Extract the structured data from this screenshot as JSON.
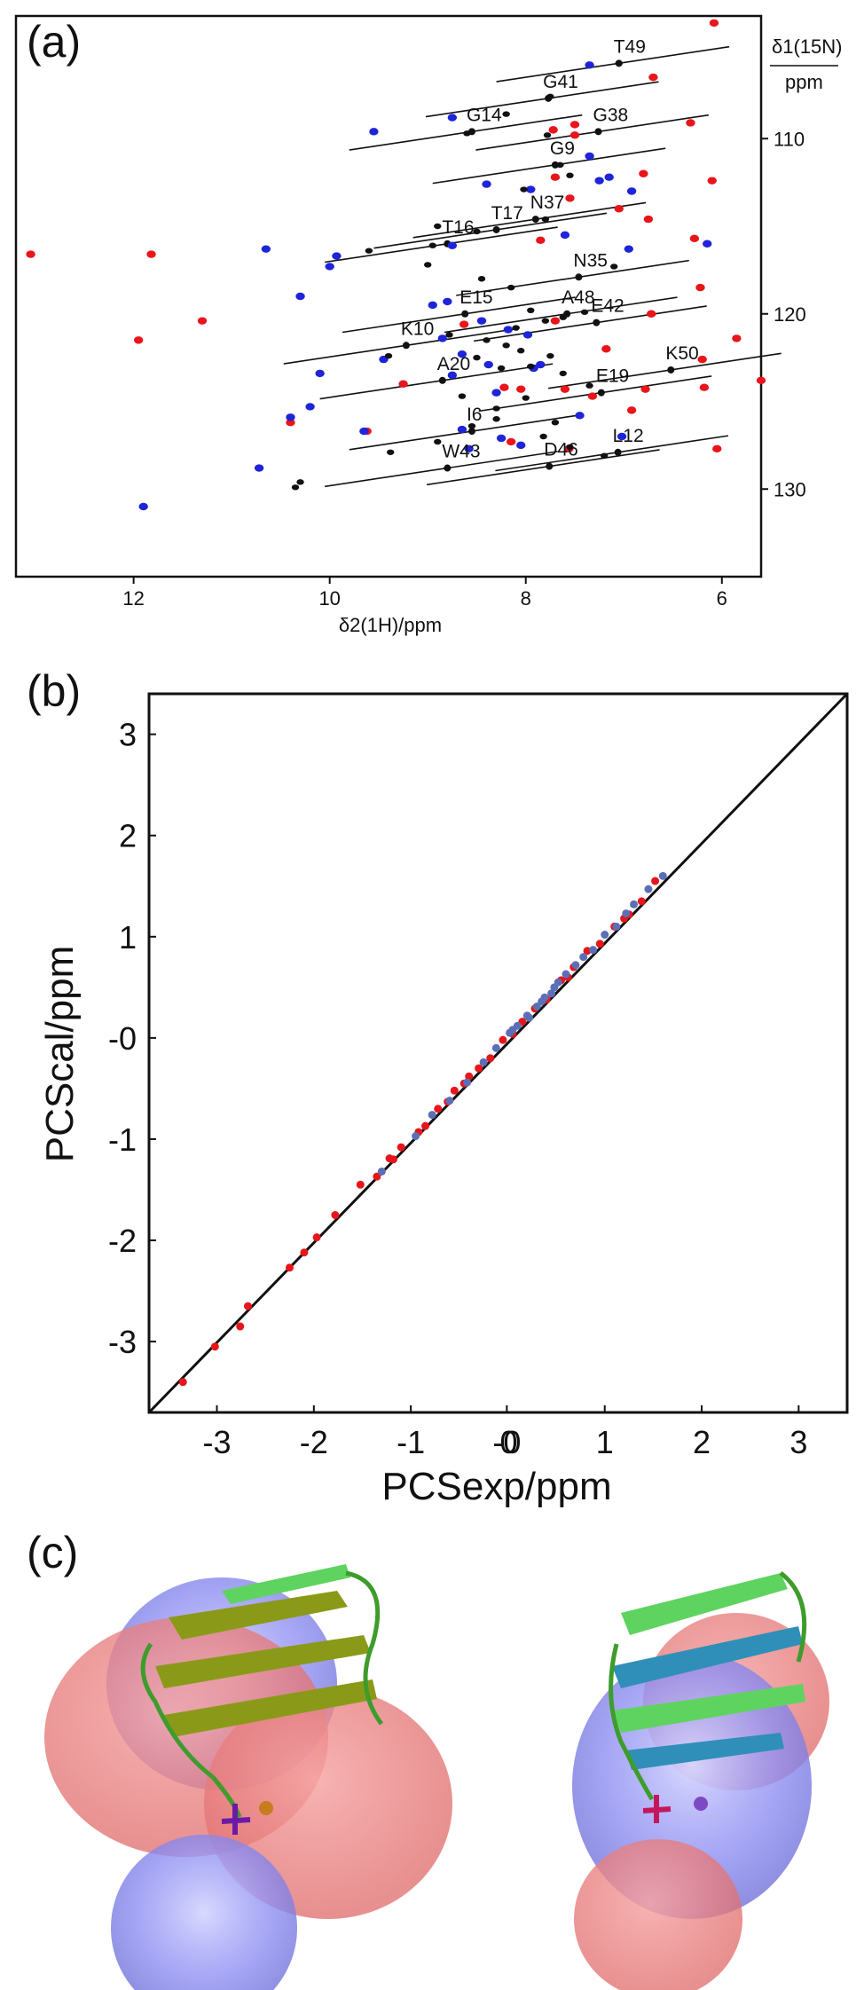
{
  "panels": {
    "a": "(a)",
    "b": "(b)",
    "c": "(c)"
  },
  "panel_a": {
    "y_axis_label_top": "δ1(15N)",
    "y_axis_label_bottom": "ppm",
    "x_axis_label": "δ2(1H)/ppm"
  },
  "panel_b": {
    "x_axis_label": "PCSexp/ppm",
    "y_axis_label": "PCScal/ppm"
  },
  "colors": {
    "red": "#e8151b",
    "blue": "#1e24d8",
    "black": "#111111",
    "fit": "#5c6fb6"
  },
  "chart_data": [
    {
      "type": "scatter",
      "title": "",
      "xlabel": "δ2(1H)/ppm",
      "ylabel": "δ1(15N)/ppm",
      "xlim": [
        13.2,
        5.6
      ],
      "ylim": [
        135,
        103
      ],
      "x_inverted": true,
      "y_inverted": true,
      "x_ticks": [
        12,
        10,
        8,
        6
      ],
      "y_ticks": [
        110,
        120,
        130
      ],
      "assignments": [
        {
          "label": "T49",
          "x": 7.05,
          "y": 105.7
        },
        {
          "label": "G41",
          "x": 7.77,
          "y": 107.7
        },
        {
          "label": "G38",
          "x": 7.26,
          "y": 109.6
        },
        {
          "label": "G14",
          "x": 8.55,
          "y": 109.6
        },
        {
          "label": "G9",
          "x": 7.7,
          "y": 111.5
        },
        {
          "label": "N37",
          "x": 7.9,
          "y": 114.6
        },
        {
          "label": "T17",
          "x": 8.3,
          "y": 115.2
        },
        {
          "label": "T16",
          "x": 8.8,
          "y": 116.0
        },
        {
          "label": "N35",
          "x": 7.46,
          "y": 117.9
        },
        {
          "label": "E15",
          "x": 8.62,
          "y": 120.0
        },
        {
          "label": "A48",
          "x": 7.58,
          "y": 120.0
        },
        {
          "label": "E42",
          "x": 7.28,
          "y": 120.5
        },
        {
          "label": "K10",
          "x": 9.22,
          "y": 121.8
        },
        {
          "label": "K50",
          "x": 6.52,
          "y": 123.2
        },
        {
          "label": "A20",
          "x": 8.85,
          "y": 123.8
        },
        {
          "label": "E19",
          "x": 7.23,
          "y": 124.5
        },
        {
          "label": "I6",
          "x": 8.55,
          "y": 126.7
        },
        {
          "label": "L12",
          "x": 7.06,
          "y": 127.9
        },
        {
          "label": "W43",
          "x": 8.8,
          "y": 128.8
        },
        {
          "label": "D46",
          "x": 7.76,
          "y": 128.7
        }
      ],
      "series": [
        {
          "name": "",
          "color": "#e8151b",
          "x": [
            6.08,
            6.7,
            7.5,
            7.72,
            7.7,
            6.8,
            7.55,
            6.1,
            7.05,
            6.75,
            6.28,
            7.85,
            13.05,
            11.82,
            6.22,
            11.3,
            6.72,
            7.7,
            5.85,
            11.95,
            7.18,
            6.2,
            9.25,
            6.78,
            6.18,
            7.32,
            8.22,
            5.6,
            8.05,
            6.92,
            10.4,
            9.62,
            7.56,
            6.05,
            8.15,
            7.6,
            8.63,
            6.32,
            7.5
          ],
          "y": [
            103.4,
            106.5,
            109.2,
            109.5,
            112.2,
            112.0,
            113.4,
            112.4,
            114.0,
            114.6,
            115.7,
            115.8,
            116.6,
            116.6,
            118.5,
            120.4,
            120.0,
            120.4,
            121.4,
            121.5,
            122.0,
            122.6,
            124.0,
            124.3,
            124.2,
            124.7,
            124.2,
            123.8,
            124.3,
            125.5,
            126.2,
            126.7,
            127.7,
            127.7,
            127.3,
            124.3,
            120.6,
            109.1,
            109.8
          ]
        },
        {
          "name": "",
          "color": "#1e24d8",
          "x": [
            7.35,
            8.75,
            9.55,
            7.35,
            7.15,
            8.4,
            7.95,
            7.25,
            6.92,
            7.6,
            8.75,
            6.95,
            9.93,
            10.65,
            10.0,
            10.3,
            8.8,
            8.45,
            8.18,
            7.98,
            8.85,
            8.65,
            9.45,
            8.38,
            7.92,
            8.75,
            8.3,
            10.4,
            10.2,
            9.65,
            8.65,
            8.25,
            7.45,
            10.72,
            8.58,
            11.9,
            8.05,
            7.02,
            8.95,
            7.85,
            10.1,
            6.15
          ],
          "y": [
            105.8,
            108.8,
            109.6,
            111.0,
            112.2,
            112.6,
            112.9,
            112.4,
            113.0,
            115.5,
            116.1,
            116.3,
            116.7,
            116.3,
            117.3,
            119.0,
            119.3,
            120.4,
            120.9,
            121.2,
            121.4,
            122.3,
            122.6,
            122.9,
            123.1,
            123.5,
            124.5,
            125.9,
            125.3,
            126.7,
            126.6,
            127.1,
            125.8,
            128.8,
            127.7,
            131.0,
            127.5,
            127.0,
            119.5,
            122.9,
            123.4,
            116.0
          ]
        },
        {
          "name": "",
          "color": "#111111",
          "x": [
            7.05,
            7.75,
            8.2,
            7.78,
            8.6,
            8.9,
            7.65,
            7.55,
            8.02,
            7.8,
            7.1,
            8.5,
            8.95,
            9.0,
            9.6,
            8.45,
            8.15,
            7.95,
            7.8,
            7.62,
            7.4,
            8.1,
            8.4,
            8.78,
            8.2,
            8.05,
            7.75,
            8.5,
            8.25,
            7.95,
            7.62,
            7.35,
            9.4,
            8.65,
            8.3,
            8.0,
            7.7,
            10.35,
            10.3,
            9.38,
            8.9,
            8.55,
            8.3,
            7.82,
            7.55,
            7.2
          ],
          "y": [
            105.7,
            107.6,
            108.6,
            109.8,
            109.7,
            115.0,
            111.5,
            112.1,
            112.9,
            114.6,
            117.3,
            115.3,
            116.1,
            117.2,
            116.4,
            118.0,
            118.5,
            119.8,
            120.4,
            120.2,
            119.9,
            120.8,
            121.5,
            121.2,
            121.8,
            122.1,
            122.4,
            122.5,
            123.1,
            123.0,
            123.4,
            124.1,
            122.4,
            124.7,
            125.4,
            124.8,
            126.2,
            129.9,
            129.6,
            127.9,
            127.3,
            126.4,
            126.0,
            127.0,
            127.6,
            128.1
          ]
        }
      ]
    },
    {
      "type": "scatter",
      "title": "",
      "xlabel": "PCSexp/ppm",
      "ylabel": "PCScal/ppm",
      "xlim": [
        -3.7,
        3.5
      ],
      "ylim": [
        -3.7,
        3.4
      ],
      "x_ticks": [
        "-3",
        "-2",
        "-1",
        "-0",
        "0",
        "1",
        "2",
        "3"
      ],
      "x_tick_values": [
        -3,
        -2,
        -1,
        -0.01,
        0.01,
        1,
        2,
        3
      ],
      "y_ticks": [
        "-3",
        "-2",
        "-1",
        "-0",
        "1",
        "2",
        "3"
      ],
      "y_tick_values": [
        -3,
        -2,
        -1,
        0,
        1,
        2,
        3
      ],
      "fit_line": {
        "x": [
          -3.7,
          3.5
        ],
        "y": [
          -3.7,
          3.5
        ]
      },
      "series": [
        {
          "name": "",
          "color": "#e8151b",
          "x": [
            -3.35,
            -3.02,
            -2.76,
            -2.68,
            -2.25,
            -2.1,
            -1.97,
            -1.78,
            -1.52,
            -1.35,
            -1.22,
            -1.18,
            -1.1,
            -0.92,
            -0.85,
            -0.72,
            -0.62,
            -0.55,
            -0.45,
            -0.3,
            -0.18,
            0.05,
            0.15,
            0.28,
            0.4,
            0.55,
            0.68,
            0.82,
            0.95,
            1.1,
            1.25,
            1.38,
            1.52,
            -0.05,
            0.62,
            1.2,
            -0.4
          ],
          "y": [
            -3.4,
            -3.05,
            -2.85,
            -2.65,
            -2.27,
            -2.12,
            -1.97,
            -1.75,
            -1.45,
            -1.37,
            -1.19,
            -1.2,
            -1.08,
            -0.93,
            -0.87,
            -0.7,
            -0.63,
            -0.52,
            -0.45,
            -0.3,
            -0.2,
            0.04,
            0.16,
            0.29,
            0.38,
            0.57,
            0.7,
            0.86,
            0.93,
            1.1,
            1.22,
            1.35,
            1.55,
            -0.02,
            0.6,
            1.18,
            -0.38
          ]
        },
        {
          "name": "",
          "color": "#5c6fb6",
          "x": [
            -1.3,
            -0.95,
            -0.78,
            -0.6,
            -0.42,
            -0.25,
            -0.12,
            0.02,
            0.1,
            0.2,
            0.3,
            0.38,
            0.45,
            0.52,
            0.6,
            0.7,
            0.78,
            0.88,
            1.0,
            1.12,
            1.22,
            1.3,
            1.45,
            1.6,
            0.35,
            0.48,
            0.22,
            0.05
          ],
          "y": [
            -1.32,
            -0.97,
            -0.76,
            -0.62,
            -0.44,
            -0.24,
            -0.1,
            0.05,
            0.12,
            0.22,
            0.31,
            0.4,
            0.44,
            0.55,
            0.63,
            0.72,
            0.8,
            0.87,
            1.02,
            1.1,
            1.23,
            1.32,
            1.47,
            1.6,
            0.36,
            0.5,
            0.2,
            0.08
          ]
        }
      ]
    }
  ]
}
